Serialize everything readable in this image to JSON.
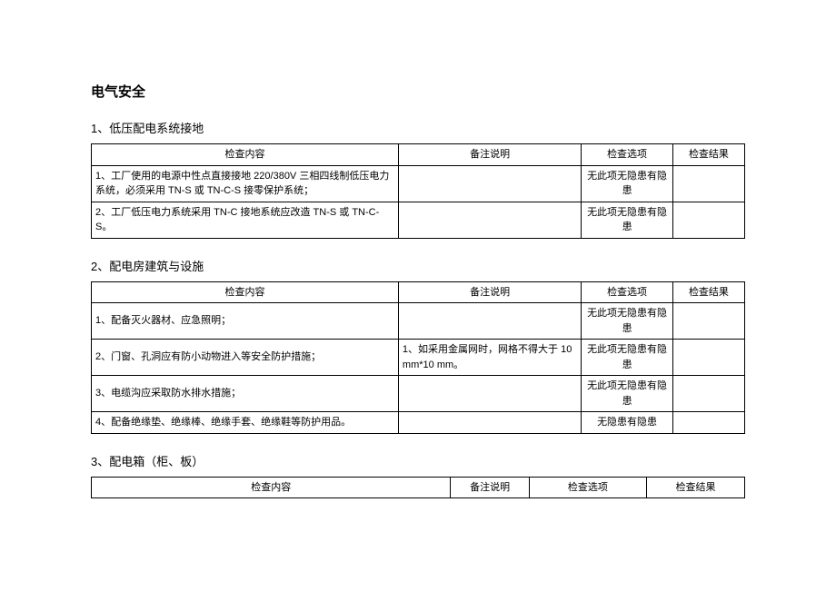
{
  "title": "电气安全",
  "headers": {
    "content": "检查内容",
    "note": "备注说明",
    "option": "检查选项",
    "result": "检查结果"
  },
  "sections": [
    {
      "heading": "1、低压配电系统接地",
      "rows": [
        {
          "content": "1、工厂使用的电源中性点直接接地 220/380V 三相四线制低压电力系统，必须采用 TN-S 或 TN-C-S 接零保护系统；",
          "note": "",
          "option": "无此项无隐患有隐患",
          "result": ""
        },
        {
          "content": "2、工厂低压电力系统采用 TN-C 接地系统应改造 TN-S 或 TN-C-S。",
          "note": "",
          "option": "无此项无隐患有隐患",
          "result": ""
        }
      ]
    },
    {
      "heading": "2、配电房建筑与设施",
      "rows": [
        {
          "content": "1、配备灭火器材、应急照明；",
          "note": "",
          "option": "无此项无隐患有隐患",
          "result": ""
        },
        {
          "content": "2、门窗、孔洞应有防小动物进入等安全防护措施；",
          "note": "1、如采用金属网时，网格不得大于 10mm*10 mm。",
          "option": "无此项无隐患有隐患",
          "result": ""
        },
        {
          "content": "3、电缆沟应采取防水排水措施；",
          "note": "",
          "option": "无此项无隐患有隐患",
          "result": ""
        },
        {
          "content": "4、配备绝缘垫、绝缘棒、绝缘手套、绝缘鞋等防护用品。",
          "note": "",
          "option": "无隐患有隐患",
          "result": ""
        }
      ]
    },
    {
      "heading": "3、配电箱（柜、板）",
      "rows": []
    }
  ]
}
